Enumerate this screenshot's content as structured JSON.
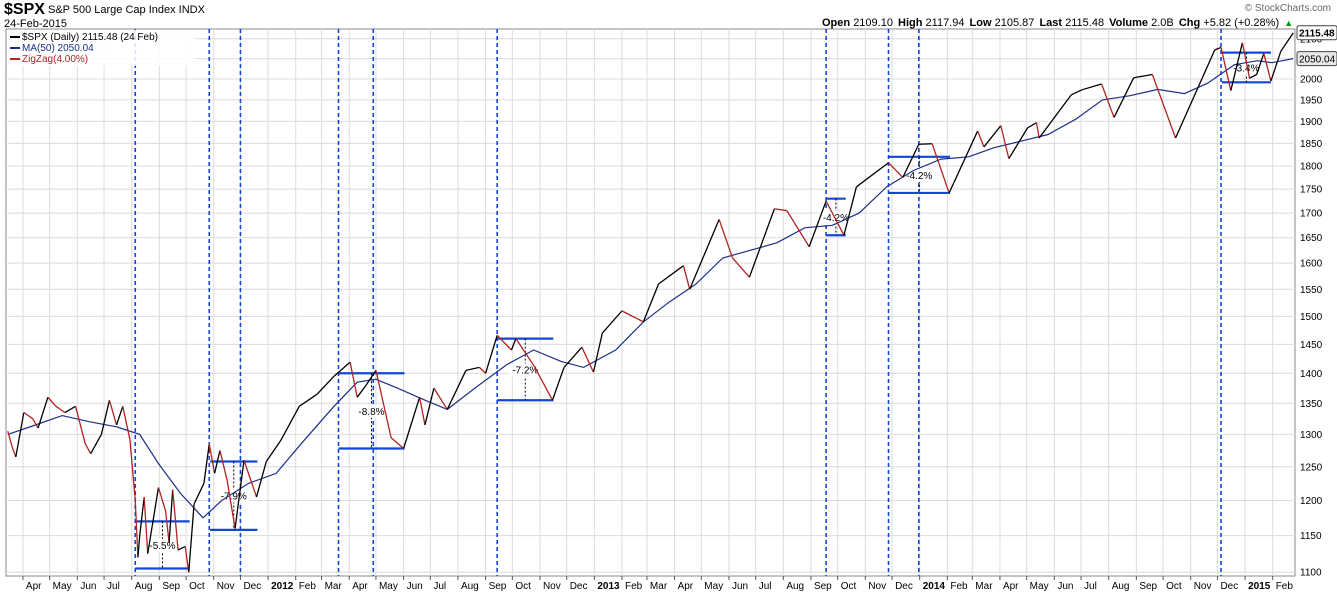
{
  "header": {
    "symbol": "$SPX",
    "description": "S&P 500 Large Cap Index INDX",
    "date": "24-Feb-2015",
    "brand": "© StockCharts.com",
    "open_label": "Open",
    "open": "2109.10",
    "high_label": "High",
    "high": "2117.94",
    "low_label": "Low",
    "low": "2105.87",
    "last_label": "Last",
    "last": "2115.48",
    "volume_label": "Volume",
    "volume": "2.0B",
    "chg_label": "Chg",
    "chg": "+5.82 (+0.28%)"
  },
  "legend": {
    "price": "$SPX (Daily) 2115.48 (24 Feb)",
    "ma": "MA(50) 2050.04",
    "zigzag": "ZigZag(4.00%)"
  },
  "colors": {
    "price": "#000000",
    "zigzag_down": "#b22222",
    "ma": "#1c2f8a",
    "marker": "#1446d6",
    "grid": "#dcdcdc",
    "price_tag": "#e8e8e8"
  },
  "chart_data": {
    "type": "line",
    "title": "S&P 500 Large Cap Index",
    "ylabel": "",
    "ylim": [
      1095,
      2125
    ],
    "scale": "log",
    "grid": true,
    "legend_position": "top-left",
    "yticks": [
      1100,
      1150,
      1200,
      1250,
      1300,
      1350,
      1400,
      1450,
      1500,
      1550,
      1600,
      1650,
      1700,
      1750,
      1800,
      1850,
      1900,
      1950,
      2000,
      2050,
      2100
    ],
    "xticks": [
      "Apr",
      "May",
      "Jun",
      "Jul",
      "Aug",
      "Sep",
      "Oct",
      "Nov",
      "Dec",
      "2012",
      "Feb",
      "Mar",
      "Apr",
      "May",
      "Jun",
      "Jul",
      "Aug",
      "Sep",
      "Oct",
      "Nov",
      "Dec",
      "2013",
      "Feb",
      "Mar",
      "Apr",
      "May",
      "Jun",
      "Jul",
      "Aug",
      "Sep",
      "Oct",
      "Nov",
      "Dec",
      "2014",
      "Feb",
      "Mar",
      "Apr",
      "May",
      "Jun",
      "Jul",
      "Aug",
      "Sep",
      "Oct",
      "Nov",
      "Dec",
      "2015",
      "Feb"
    ],
    "series": [
      {
        "name": "$SPX (Daily)",
        "points": [
          [
            "2011-03-15",
            1305
          ],
          [
            "2011-03-20",
            1280
          ],
          [
            "2011-03-24",
            1265
          ],
          [
            "2011-04-02",
            1335
          ],
          [
            "2011-04-12",
            1325
          ],
          [
            "2011-04-18",
            1310
          ],
          [
            "2011-04-29",
            1360
          ],
          [
            "2011-05-08",
            1345
          ],
          [
            "2011-05-18",
            1335
          ],
          [
            "2011-05-30",
            1345
          ],
          [
            "2011-06-10",
            1285
          ],
          [
            "2011-06-16",
            1270
          ],
          [
            "2011-06-28",
            1300
          ],
          [
            "2011-07-07",
            1355
          ],
          [
            "2011-07-15",
            1315
          ],
          [
            "2011-07-22",
            1345
          ],
          [
            "2011-07-30",
            1292
          ],
          [
            "2011-08-05",
            1200
          ],
          [
            "2011-08-08",
            1120
          ],
          [
            "2011-08-10",
            1150
          ],
          [
            "2011-08-15",
            1205
          ],
          [
            "2011-08-19",
            1125
          ],
          [
            "2011-08-31",
            1219
          ],
          [
            "2011-09-08",
            1185
          ],
          [
            "2011-09-12",
            1140
          ],
          [
            "2011-09-16",
            1216
          ],
          [
            "2011-09-22",
            1130
          ],
          [
            "2011-09-30",
            1135
          ],
          [
            "2011-10-04",
            1100
          ],
          [
            "2011-10-10",
            1195
          ],
          [
            "2011-10-21",
            1225
          ],
          [
            "2011-10-27",
            1285
          ],
          [
            "2011-11-02",
            1240
          ],
          [
            "2011-11-08",
            1275
          ],
          [
            "2011-11-16",
            1230
          ],
          [
            "2011-11-25",
            1160
          ],
          [
            "2011-12-05",
            1260
          ],
          [
            "2011-12-19",
            1205
          ],
          [
            "2011-12-30",
            1258
          ],
          [
            "2012-01-15",
            1290
          ],
          [
            "2012-02-05",
            1345
          ],
          [
            "2012-02-25",
            1365
          ],
          [
            "2012-03-15",
            1395
          ],
          [
            "2012-04-02",
            1419
          ],
          [
            "2012-04-10",
            1360
          ],
          [
            "2012-04-20",
            1380
          ],
          [
            "2012-05-01",
            1405
          ],
          [
            "2012-05-18",
            1295
          ],
          [
            "2012-06-01",
            1278
          ],
          [
            "2012-06-19",
            1360
          ],
          [
            "2012-06-25",
            1315
          ],
          [
            "2012-07-05",
            1375
          ],
          [
            "2012-07-20",
            1340
          ],
          [
            "2012-08-10",
            1405
          ],
          [
            "2012-08-25",
            1410
          ],
          [
            "2012-09-01",
            1400
          ],
          [
            "2012-09-14",
            1466
          ],
          [
            "2012-09-30",
            1440
          ],
          [
            "2012-10-05",
            1460
          ],
          [
            "2012-10-26",
            1411
          ],
          [
            "2012-11-15",
            1355
          ],
          [
            "2012-11-28",
            1410
          ],
          [
            "2012-12-18",
            1445
          ],
          [
            "2012-12-31",
            1402
          ],
          [
            "2013-01-10",
            1470
          ],
          [
            "2013-02-01",
            1510
          ],
          [
            "2013-02-25",
            1490
          ],
          [
            "2013-03-14",
            1560
          ],
          [
            "2013-04-11",
            1595
          ],
          [
            "2013-04-18",
            1550
          ],
          [
            "2013-05-21",
            1687
          ],
          [
            "2013-06-05",
            1610
          ],
          [
            "2013-06-24",
            1573
          ],
          [
            "2013-07-22",
            1709
          ],
          [
            "2013-08-05",
            1705
          ],
          [
            "2013-08-30",
            1632
          ],
          [
            "2013-09-18",
            1725
          ],
          [
            "2013-10-08",
            1655
          ],
          [
            "2013-10-22",
            1755
          ],
          [
            "2013-11-27",
            1807
          ],
          [
            "2013-12-13",
            1775
          ],
          [
            "2013-12-31",
            1848
          ],
          [
            "2014-01-15",
            1849
          ],
          [
            "2014-02-03",
            1742
          ],
          [
            "2014-03-07",
            1878
          ],
          [
            "2014-03-14",
            1842
          ],
          [
            "2014-04-02",
            1890
          ],
          [
            "2014-04-11",
            1816
          ],
          [
            "2014-05-02",
            1885
          ],
          [
            "2014-05-12",
            1897
          ],
          [
            "2014-05-15",
            1862
          ],
          [
            "2014-06-20",
            1962
          ],
          [
            "2014-07-02",
            1974
          ],
          [
            "2014-07-24",
            1988
          ],
          [
            "2014-08-07",
            1909
          ],
          [
            "2014-08-29",
            2003
          ],
          [
            "2014-09-19",
            2011
          ],
          [
            "2014-10-15",
            1862
          ],
          [
            "2014-11-28",
            2072
          ],
          [
            "2014-12-05",
            2078
          ],
          [
            "2014-12-16",
            1972
          ],
          [
            "2014-12-29",
            2090
          ],
          [
            "2015-01-06",
            2002
          ],
          [
            "2015-01-14",
            2011
          ],
          [
            "2015-01-22",
            2063
          ],
          [
            "2015-01-30",
            1995
          ],
          [
            "2015-02-10",
            2068
          ],
          [
            "2015-02-24",
            2115
          ]
        ]
      },
      {
        "name": "MA(50)",
        "points": [
          [
            "2011-03-15",
            1300
          ],
          [
            "2011-04-15",
            1315
          ],
          [
            "2011-05-15",
            1330
          ],
          [
            "2011-06-15",
            1320
          ],
          [
            "2011-07-15",
            1312
          ],
          [
            "2011-08-10",
            1300
          ],
          [
            "2011-08-31",
            1255
          ],
          [
            "2011-09-25",
            1210
          ],
          [
            "2011-10-20",
            1175
          ],
          [
            "2011-11-10",
            1200
          ],
          [
            "2011-12-10",
            1225
          ],
          [
            "2012-01-10",
            1240
          ],
          [
            "2012-02-10",
            1290
          ],
          [
            "2012-03-15",
            1345
          ],
          [
            "2012-04-10",
            1385
          ],
          [
            "2012-05-01",
            1390
          ],
          [
            "2012-05-25",
            1375
          ],
          [
            "2012-06-25",
            1355
          ],
          [
            "2012-07-20",
            1340
          ],
          [
            "2012-08-20",
            1375
          ],
          [
            "2012-09-25",
            1415
          ],
          [
            "2012-10-25",
            1440
          ],
          [
            "2012-11-25",
            1420
          ],
          [
            "2012-12-20",
            1410
          ],
          [
            "2013-01-25",
            1440
          ],
          [
            "2013-02-25",
            1490
          ],
          [
            "2013-03-25",
            1525
          ],
          [
            "2013-04-25",
            1560
          ],
          [
            "2013-05-25",
            1610
          ],
          [
            "2013-06-25",
            1625
          ],
          [
            "2013-07-25",
            1640
          ],
          [
            "2013-08-25",
            1670
          ],
          [
            "2013-09-25",
            1675
          ],
          [
            "2013-10-25",
            1700
          ],
          [
            "2013-11-25",
            1755
          ],
          [
            "2013-12-25",
            1790
          ],
          [
            "2014-01-25",
            1815
          ],
          [
            "2014-02-25",
            1820
          ],
          [
            "2014-03-25",
            1840
          ],
          [
            "2014-04-25",
            1855
          ],
          [
            "2014-05-25",
            1870
          ],
          [
            "2014-06-25",
            1905
          ],
          [
            "2014-07-25",
            1950
          ],
          [
            "2014-08-25",
            1960
          ],
          [
            "2014-09-25",
            1975
          ],
          [
            "2014-10-25",
            1965
          ],
          [
            "2014-11-20",
            1990
          ],
          [
            "2014-12-20",
            2035
          ],
          [
            "2015-01-15",
            2045
          ],
          [
            "2015-01-31",
            2040
          ],
          [
            "2015-02-24",
            2050
          ]
        ]
      }
    ],
    "corrections": [
      {
        "label": "-5.5%",
        "start": "2011-08-05",
        "end": "2011-10-05",
        "top": 1170,
        "bottom": 1105
      },
      {
        "label": "-7.9%",
        "start": "2011-10-28",
        "end": "2011-12-20",
        "top": 1258,
        "bottom": 1158
      },
      {
        "label": "-8.8%",
        "start": "2012-03-20",
        "end": "2012-06-02",
        "top": 1400,
        "bottom": 1278
      },
      {
        "label": "-7.2%",
        "start": "2012-09-14",
        "end": "2012-11-16",
        "top": 1460,
        "bottom": 1355
      },
      {
        "label": "-4.2%",
        "start": "2013-09-18",
        "end": "2013-10-10",
        "top": 1730,
        "bottom": 1655
      },
      {
        "label": "-4.2%",
        "start": "2013-11-27",
        "end": "2014-02-04",
        "top": 1820,
        "bottom": 1742
      },
      {
        "label": "-3.4%",
        "start": "2014-12-06",
        "end": "2015-01-30",
        "top": 2065,
        "bottom": 1992
      }
    ],
    "vertical_markers": [
      "2011-08-05",
      "2011-10-27",
      "2011-12-01",
      "2012-03-20",
      "2012-04-28",
      "2012-09-14",
      "2013-09-18",
      "2013-11-27",
      "2013-12-31",
      "2014-12-05"
    ],
    "price_tags": [
      "2115.48",
      "2050.04"
    ]
  }
}
